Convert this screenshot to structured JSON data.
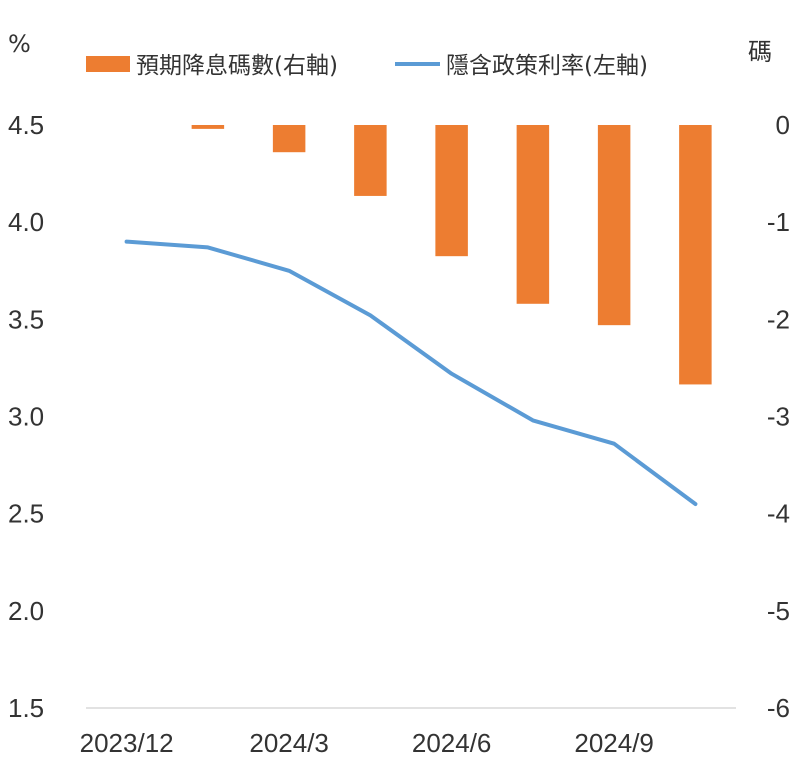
{
  "chart_data": {
    "type": "bar+line",
    "left_unit": "%",
    "right_unit": "碼",
    "x_tick_labels": [
      "2023/12",
      "2024/3",
      "2024/6",
      "2024/9"
    ],
    "left_axis": {
      "ylim": [
        1.5,
        4.5
      ],
      "ticks": [
        "4.5",
        "4.0",
        "3.5",
        "3.0",
        "2.5",
        "2.0",
        "1.5"
      ]
    },
    "right_axis": {
      "ylim": [
        -6,
        0
      ],
      "ticks": [
        "0",
        "-1",
        "-2",
        "-3",
        "-4",
        "-5",
        "-6"
      ]
    },
    "legend_position": "top",
    "series": [
      {
        "name": "預期降息碼數(右軸)",
        "type": "bar",
        "axis": "right",
        "color": "#ED7D31",
        "values": [
          0,
          -0.04,
          -0.28,
          -0.73,
          -1.35,
          -1.84,
          -2.06,
          -2.67
        ]
      },
      {
        "name": "隱含政策利率(左軸)",
        "type": "line",
        "axis": "left",
        "color": "#5B9BD5",
        "values": [
          3.9,
          3.87,
          3.75,
          3.52,
          3.22,
          2.98,
          2.86,
          2.55
        ]
      }
    ]
  }
}
